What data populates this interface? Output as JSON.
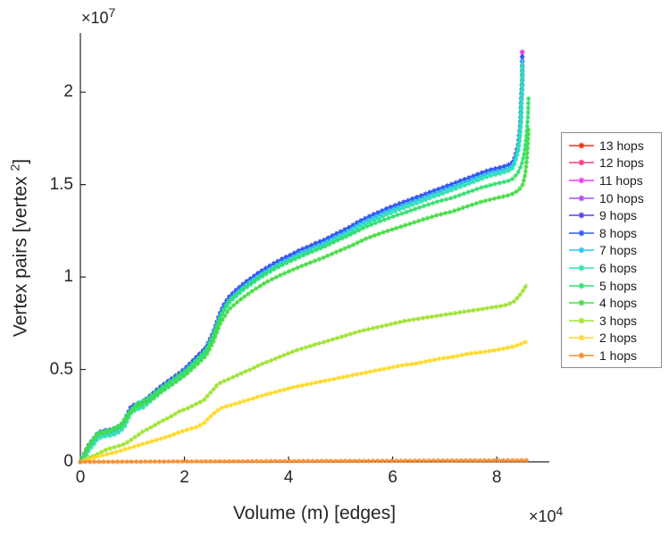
{
  "figure": {
    "background": "#ffffff",
    "axis_color": "#262626"
  },
  "chart_data": {
    "type": "line",
    "title": "",
    "xlabel": "Volume (m) [edges]",
    "ylabel_main": "Vertex pairs [vertex",
    "ylabel_sup": "2",
    "ylabel_close": "]",
    "x_exponent_prefix": "×10",
    "x_exponent_sup": "4",
    "y_exponent_prefix": "×10",
    "y_exponent_sup": "7",
    "x_unit_scale": 10000,
    "y_unit_scale": 10000000,
    "xlim": [
      0,
      9.01
    ],
    "ylim": [
      0,
      2.32
    ],
    "x_ticks": [
      0,
      2,
      4,
      6,
      8
    ],
    "y_ticks": [
      0,
      0.5,
      1,
      1.5,
      2
    ],
    "grid": false,
    "legend_position": "right-outside",
    "marker": "asterisk",
    "cluster_path": [
      [
        0,
        0
      ],
      [
        0.09,
        0.053
      ],
      [
        0.17,
        0.097
      ],
      [
        0.26,
        0.126
      ],
      [
        0.34,
        0.159
      ],
      [
        0.45,
        0.169
      ],
      [
        0.58,
        0.174
      ],
      [
        0.7,
        0.184
      ],
      [
        0.79,
        0.203
      ],
      [
        0.86,
        0.227
      ],
      [
        0.91,
        0.261
      ],
      [
        0.98,
        0.3
      ],
      [
        1.08,
        0.314
      ],
      [
        1.2,
        0.324
      ],
      [
        1.32,
        0.353
      ],
      [
        1.44,
        0.382
      ],
      [
        1.56,
        0.411
      ],
      [
        1.68,
        0.435
      ],
      [
        1.8,
        0.459
      ],
      [
        1.92,
        0.483
      ],
      [
        2.04,
        0.512
      ],
      [
        2.16,
        0.546
      ],
      [
        2.26,
        0.575
      ],
      [
        2.35,
        0.599
      ],
      [
        2.42,
        0.623
      ],
      [
        2.49,
        0.662
      ],
      [
        2.56,
        0.705
      ],
      [
        2.62,
        0.754
      ],
      [
        2.69,
        0.807
      ],
      [
        2.76,
        0.85
      ],
      [
        2.85,
        0.889
      ],
      [
        2.95,
        0.918
      ],
      [
        3.05,
        0.942
      ],
      [
        3.17,
        0.971
      ],
      [
        3.29,
        0.995
      ],
      [
        3.43,
        1.024
      ],
      [
        3.57,
        1.048
      ],
      [
        3.71,
        1.072
      ],
      [
        3.84,
        1.092
      ],
      [
        3.98,
        1.111
      ],
      [
        4.12,
        1.13
      ],
      [
        4.25,
        1.15
      ],
      [
        4.39,
        1.164
      ],
      [
        4.53,
        1.184
      ],
      [
        4.67,
        1.198
      ],
      [
        4.8,
        1.217
      ],
      [
        4.94,
        1.237
      ],
      [
        5.08,
        1.256
      ],
      [
        5.21,
        1.275
      ],
      [
        5.35,
        1.3
      ],
      [
        5.49,
        1.319
      ],
      [
        5.63,
        1.338
      ],
      [
        5.76,
        1.353
      ],
      [
        5.9,
        1.372
      ],
      [
        6.04,
        1.386
      ],
      [
        6.17,
        1.401
      ],
      [
        6.31,
        1.415
      ],
      [
        6.45,
        1.43
      ],
      [
        6.59,
        1.444
      ],
      [
        6.72,
        1.459
      ],
      [
        6.86,
        1.473
      ],
      [
        7,
        1.488
      ],
      [
        7.14,
        1.502
      ],
      [
        7.27,
        1.517
      ],
      [
        7.41,
        1.531
      ],
      [
        7.55,
        1.546
      ],
      [
        7.68,
        1.56
      ],
      [
        7.82,
        1.575
      ],
      [
        7.96,
        1.585
      ],
      [
        8.1,
        1.594
      ],
      [
        8.2,
        1.604
      ],
      [
        8.29,
        1.614
      ],
      [
        8.35,
        1.647
      ],
      [
        8.41,
        1.71
      ],
      [
        8.44,
        1.783
      ],
      [
        8.46,
        1.86
      ],
      [
        8.47,
        1.957
      ],
      [
        8.49,
        2.063
      ],
      [
        8.49,
        2.15
      ],
      [
        8.49,
        2.198
      ]
    ],
    "series": [
      {
        "name": "13 hops",
        "color": "#f2301e",
        "ref": "cluster",
        "dy": 0,
        "apex": 2.23
      },
      {
        "name": "12 hops",
        "color": "#f23d84",
        "ref": "cluster",
        "dy": 0,
        "apex": 2.23
      },
      {
        "name": "11 hops",
        "color": "#ee3df0",
        "ref": "cluster",
        "dy": 0,
        "apex": 2.222
      },
      {
        "name": "10 hops",
        "color": "#b44df2",
        "ref": "cluster",
        "dy": 0,
        "apex": 2.215
      },
      {
        "name": "9 hops",
        "color": "#5a3ff0",
        "ref": "cluster",
        "dy": 0,
        "apex": 2.205
      },
      {
        "name": "8 hops",
        "color": "#2a5cf6",
        "ref": "cluster",
        "dy": 0,
        "apex": 2.198
      },
      {
        "name": "7 hops",
        "color": "#2fc3f0",
        "ref": "cluster",
        "dy": -0.017,
        "apex": 2.178
      },
      {
        "name": "6 hops",
        "color": "#2ee3ae",
        "ref": "cluster",
        "dy": -0.032,
        "apex": 2.158
      },
      {
        "name": "5 hops",
        "color": "#33e070",
        "points": [
          [
            0,
            0
          ],
          [
            0.17,
            0.097
          ],
          [
            0.34,
            0.159
          ],
          [
            0.58,
            0.174
          ],
          [
            0.79,
            0.203
          ],
          [
            0.91,
            0.261
          ],
          [
            1.08,
            0.314
          ],
          [
            1.32,
            0.348
          ],
          [
            1.56,
            0.403
          ],
          [
            1.8,
            0.45
          ],
          [
            2.04,
            0.5
          ],
          [
            2.26,
            0.56
          ],
          [
            2.42,
            0.606
          ],
          [
            2.56,
            0.688
          ],
          [
            2.69,
            0.789
          ],
          [
            2.85,
            0.867
          ],
          [
            3.05,
            0.918
          ],
          [
            3.29,
            0.97
          ],
          [
            3.57,
            1.022
          ],
          [
            3.84,
            1.062
          ],
          [
            4.12,
            1.098
          ],
          [
            4.39,
            1.13
          ],
          [
            4.67,
            1.162
          ],
          [
            4.94,
            1.198
          ],
          [
            5.21,
            1.232
          ],
          [
            5.49,
            1.272
          ],
          [
            5.76,
            1.302
          ],
          [
            6.04,
            1.33
          ],
          [
            6.31,
            1.356
          ],
          [
            6.59,
            1.383
          ],
          [
            6.86,
            1.408
          ],
          [
            7.14,
            1.428
          ],
          [
            7.41,
            1.455
          ],
          [
            7.68,
            1.482
          ],
          [
            7.96,
            1.503
          ],
          [
            8.2,
            1.518
          ],
          [
            8.29,
            1.527
          ],
          [
            8.4,
            1.56
          ],
          [
            8.48,
            1.61
          ],
          [
            8.53,
            1.67
          ],
          [
            8.57,
            1.76
          ],
          [
            8.6,
            1.87
          ],
          [
            8.61,
            1.97
          ]
        ]
      },
      {
        "name": "4 hops",
        "color": "#46dc46",
        "points": [
          [
            0,
            0
          ],
          [
            0.17,
            0.092
          ],
          [
            0.34,
            0.15
          ],
          [
            0.58,
            0.165
          ],
          [
            0.79,
            0.192
          ],
          [
            0.91,
            0.247
          ],
          [
            1.08,
            0.298
          ],
          [
            1.32,
            0.33
          ],
          [
            1.56,
            0.382
          ],
          [
            1.8,
            0.427
          ],
          [
            2.04,
            0.475
          ],
          [
            2.26,
            0.532
          ],
          [
            2.42,
            0.576
          ],
          [
            2.56,
            0.654
          ],
          [
            2.69,
            0.75
          ],
          [
            2.85,
            0.824
          ],
          [
            3.05,
            0.873
          ],
          [
            3.29,
            0.922
          ],
          [
            3.57,
            0.972
          ],
          [
            3.84,
            1.01
          ],
          [
            4.12,
            1.044
          ],
          [
            4.39,
            1.075
          ],
          [
            4.67,
            1.105
          ],
          [
            4.94,
            1.138
          ],
          [
            5.21,
            1.17
          ],
          [
            5.49,
            1.208
          ],
          [
            5.76,
            1.236
          ],
          [
            6.04,
            1.262
          ],
          [
            6.31,
            1.286
          ],
          [
            6.59,
            1.312
          ],
          [
            6.86,
            1.335
          ],
          [
            7.14,
            1.354
          ],
          [
            7.41,
            1.38
          ],
          [
            7.68,
            1.405
          ],
          [
            7.96,
            1.425
          ],
          [
            8.2,
            1.44
          ],
          [
            8.29,
            1.448
          ],
          [
            8.42,
            1.47
          ],
          [
            8.5,
            1.5
          ],
          [
            8.55,
            1.56
          ],
          [
            8.58,
            1.64
          ],
          [
            8.6,
            1.73
          ],
          [
            8.61,
            1.8
          ]
        ]
      },
      {
        "name": "3 hops",
        "color": "#9fe333",
        "points": [
          [
            0,
            0
          ],
          [
            0.17,
            0.024
          ],
          [
            0.34,
            0.043
          ],
          [
            0.51,
            0.068
          ],
          [
            0.69,
            0.082
          ],
          [
            0.86,
            0.097
          ],
          [
            1.03,
            0.13
          ],
          [
            1.2,
            0.164
          ],
          [
            1.37,
            0.188
          ],
          [
            1.54,
            0.217
          ],
          [
            1.72,
            0.242
          ],
          [
            1.89,
            0.271
          ],
          [
            2.06,
            0.29
          ],
          [
            2.23,
            0.314
          ],
          [
            2.37,
            0.333
          ],
          [
            2.44,
            0.357
          ],
          [
            2.54,
            0.386
          ],
          [
            2.64,
            0.42
          ],
          [
            2.74,
            0.435
          ],
          [
            2.86,
            0.449
          ],
          [
            2.98,
            0.464
          ],
          [
            3.12,
            0.483
          ],
          [
            3.29,
            0.502
          ],
          [
            3.46,
            0.527
          ],
          [
            3.64,
            0.546
          ],
          [
            3.81,
            0.565
          ],
          [
            3.98,
            0.585
          ],
          [
            4.15,
            0.604
          ],
          [
            4.32,
            0.618
          ],
          [
            4.49,
            0.633
          ],
          [
            4.67,
            0.647
          ],
          [
            4.84,
            0.662
          ],
          [
            5.01,
            0.676
          ],
          [
            5.18,
            0.691
          ],
          [
            5.35,
            0.705
          ],
          [
            5.57,
            0.72
          ],
          [
            5.8,
            0.734
          ],
          [
            6.02,
            0.749
          ],
          [
            6.24,
            0.763
          ],
          [
            6.47,
            0.773
          ],
          [
            6.69,
            0.783
          ],
          [
            6.91,
            0.792
          ],
          [
            7.14,
            0.802
          ],
          [
            7.36,
            0.812
          ],
          [
            7.58,
            0.821
          ],
          [
            7.8,
            0.831
          ],
          [
            8.03,
            0.841
          ],
          [
            8.2,
            0.85
          ],
          [
            8.32,
            0.865
          ],
          [
            8.42,
            0.894
          ],
          [
            8.51,
            0.928
          ],
          [
            8.58,
            0.961
          ]
        ]
      },
      {
        "name": "2 hops",
        "color": "#ffd927",
        "points": [
          [
            0,
            0
          ],
          [
            0.34,
            0.029
          ],
          [
            0.69,
            0.053
          ],
          [
            1.03,
            0.082
          ],
          [
            1.37,
            0.111
          ],
          [
            1.72,
            0.14
          ],
          [
            1.89,
            0.159
          ],
          [
            2.06,
            0.174
          ],
          [
            2.23,
            0.188
          ],
          [
            2.37,
            0.208
          ],
          [
            2.45,
            0.232
          ],
          [
            2.54,
            0.256
          ],
          [
            2.64,
            0.28
          ],
          [
            2.74,
            0.295
          ],
          [
            2.92,
            0.309
          ],
          [
            3.09,
            0.324
          ],
          [
            3.26,
            0.338
          ],
          [
            3.43,
            0.353
          ],
          [
            3.6,
            0.367
          ],
          [
            3.86,
            0.386
          ],
          [
            4.12,
            0.406
          ],
          [
            4.37,
            0.42
          ],
          [
            4.63,
            0.435
          ],
          [
            4.89,
            0.449
          ],
          [
            5.15,
            0.464
          ],
          [
            5.4,
            0.478
          ],
          [
            5.66,
            0.493
          ],
          [
            5.92,
            0.507
          ],
          [
            6.17,
            0.522
          ],
          [
            6.43,
            0.531
          ],
          [
            6.69,
            0.546
          ],
          [
            6.95,
            0.56
          ],
          [
            7.2,
            0.57
          ],
          [
            7.46,
            0.585
          ],
          [
            7.72,
            0.594
          ],
          [
            7.97,
            0.604
          ],
          [
            8.15,
            0.614
          ],
          [
            8.32,
            0.623
          ],
          [
            8.46,
            0.638
          ],
          [
            8.58,
            0.652
          ]
        ]
      },
      {
        "name": "1 hops",
        "color": "#fc8d2d",
        "points": [
          [
            0,
            0
          ],
          [
            0.5,
            0.0005
          ],
          [
            1,
            0.001
          ],
          [
            1.5,
            0.0015
          ],
          [
            2,
            0.002
          ],
          [
            2.5,
            0.0025
          ],
          [
            3,
            0.003
          ],
          [
            3.5,
            0.0035
          ],
          [
            4,
            0.004
          ],
          [
            4.5,
            0.0045
          ],
          [
            5,
            0.005
          ],
          [
            5.5,
            0.0055
          ],
          [
            6,
            0.006
          ],
          [
            6.5,
            0.0065
          ],
          [
            7,
            0.007
          ],
          [
            7.5,
            0.0075
          ],
          [
            8,
            0.008
          ],
          [
            8.61,
            0.0086
          ]
        ]
      }
    ]
  }
}
